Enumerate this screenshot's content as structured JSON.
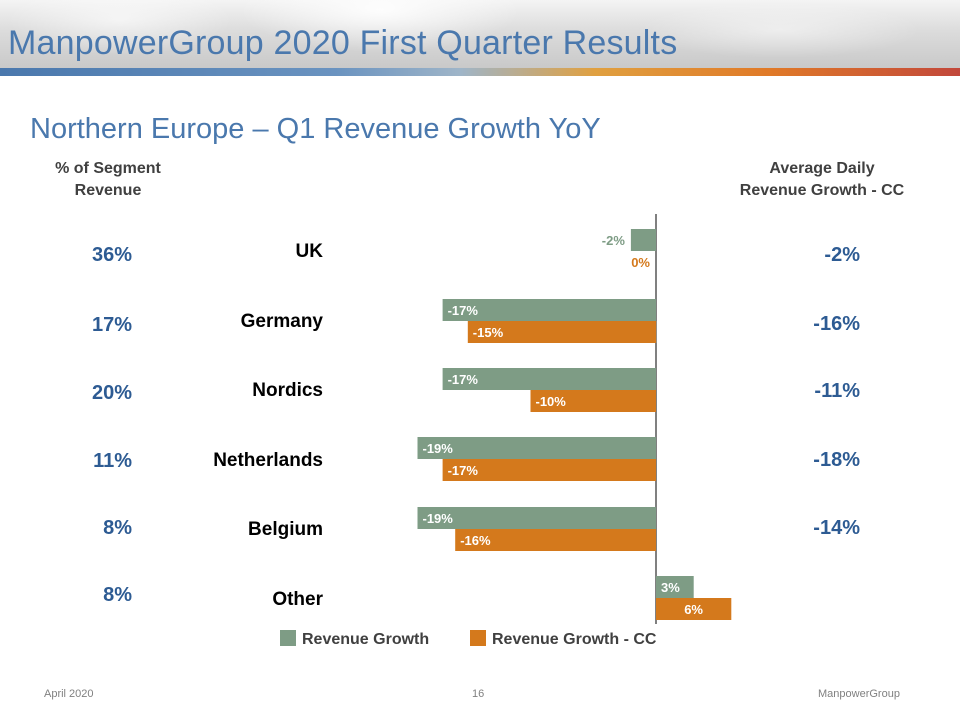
{
  "header": {
    "title": "ManpowerGroup 2020 First Quarter Results"
  },
  "subtitle": "Northern Europe – Q1 Revenue Growth YoY",
  "columns": {
    "left_header": "% of Segment\nRevenue",
    "right_header": "Average Daily\nRevenue Growth - CC"
  },
  "rows": [
    {
      "country": "UK",
      "segment_pct": "36%",
      "avg_daily": "-2%"
    },
    {
      "country": "Germany",
      "segment_pct": "17%",
      "avg_daily": "-16%"
    },
    {
      "country": "Nordics",
      "segment_pct": "20%",
      "avg_daily": "-11%"
    },
    {
      "country": "Netherlands",
      "segment_pct": "11%",
      "avg_daily": "-18%"
    },
    {
      "country": "Belgium",
      "segment_pct": "8%",
      "avg_daily": "-14%"
    },
    {
      "country": "Other",
      "segment_pct": "8%",
      "avg_daily": ""
    }
  ],
  "chart_data": {
    "type": "bar",
    "orientation": "horizontal",
    "categories": [
      "UK",
      "Germany",
      "Nordics",
      "Netherlands",
      "Belgium",
      "Other"
    ],
    "series": [
      {
        "name": "Revenue Growth",
        "color": "#7e9c85",
        "label_color": "#7e9c85",
        "values": [
          -2,
          -17,
          -17,
          -19,
          -19,
          3
        ],
        "labels": [
          "-2%",
          "-17%",
          "-17%",
          "-19%",
          "-19%",
          "3%"
        ]
      },
      {
        "name": "Revenue Growth - CC",
        "color": "#d4791c",
        "label_color": "#d4791c",
        "values": [
          0,
          -15,
          -10,
          -17,
          -16,
          6
        ],
        "labels": [
          "0%",
          "-15%",
          "-10%",
          "-17%",
          "-16%",
          "6%"
        ]
      }
    ],
    "xlim": [
      -20,
      6
    ],
    "grid": false,
    "legend": "bottom"
  },
  "footer": {
    "left": "April 2020",
    "center": "16",
    "right": "ManpowerGroup"
  }
}
